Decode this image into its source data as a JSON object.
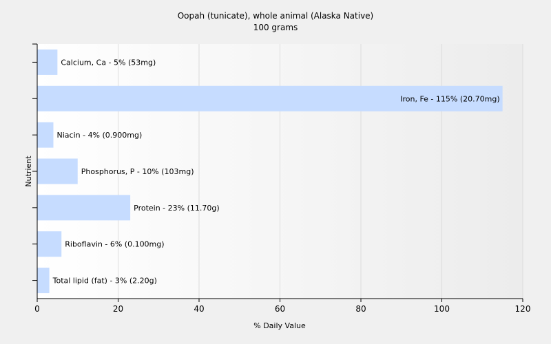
{
  "chart_data": {
    "type": "bar",
    "orientation": "horizontal",
    "title": "Oopah (tunicate), whole animal (Alaska Native)",
    "subtitle": "100 grams",
    "xlabel": "% Daily Value",
    "ylabel": "Nutrient",
    "xlim": [
      0,
      120
    ],
    "xticks": [
      0,
      20,
      40,
      60,
      80,
      100,
      120
    ],
    "grid": true,
    "bar_color": "#c6dcff",
    "categories": [
      "Calcium, Ca",
      "Iron, Fe",
      "Niacin",
      "Phosphorus, P",
      "Protein",
      "Riboflavin",
      "Total lipid (fat)"
    ],
    "values": [
      5,
      115,
      4,
      10,
      23,
      6,
      3
    ],
    "labels": [
      "Calcium, Ca - 5% (53mg)",
      "Iron, Fe - 115% (20.70mg)",
      "Niacin - 4% (0.900mg)",
      "Phosphorus, P - 10% (103mg)",
      "Protein - 23% (11.70g)",
      "Riboflavin - 6% (0.100mg)",
      "Total lipid (fat) - 3% (2.20g)"
    ]
  }
}
